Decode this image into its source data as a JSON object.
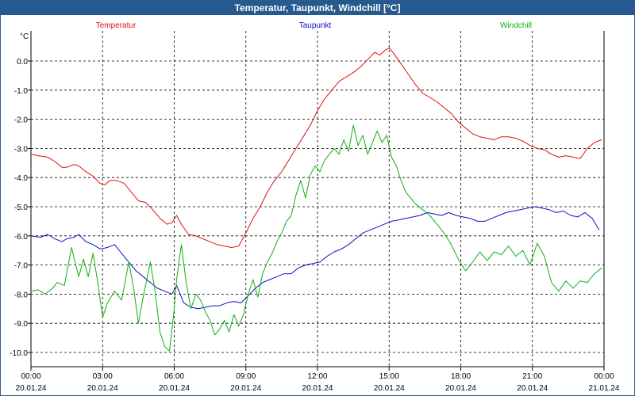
{
  "window": {
    "title": "Temperatur, Taupunkt, Windchill [°C]"
  },
  "chart_data": {
    "type": "line",
    "title": "Temperatur, Taupunkt, Windchill [°C]",
    "ylabel": "°C",
    "ylim": [
      -10.5,
      1.0
    ],
    "xlim": [
      0,
      24
    ],
    "grid": true,
    "yticks": [
      {
        "v": 0.0,
        "label": "0.0"
      },
      {
        "v": -1.0,
        "label": "-1.0"
      },
      {
        "v": -2.0,
        "label": "-2.0"
      },
      {
        "v": -3.0,
        "label": "-3.0"
      },
      {
        "v": -4.0,
        "label": "-4.0"
      },
      {
        "v": -5.0,
        "label": "-5.0"
      },
      {
        "v": -6.0,
        "label": "-6.0"
      },
      {
        "v": -7.0,
        "label": "-7.0"
      },
      {
        "v": -8.0,
        "label": "-8.0"
      },
      {
        "v": -9.0,
        "label": "-9.0"
      },
      {
        "v": -10.0,
        "label": "-10.0"
      }
    ],
    "xticks": [
      {
        "h": 0,
        "time": "00:00",
        "date": "20.01.24"
      },
      {
        "h": 3,
        "time": "03:00",
        "date": "20.01.24"
      },
      {
        "h": 6,
        "time": "06:00",
        "date": "20.01.24"
      },
      {
        "h": 9,
        "time": "09:00",
        "date": "20.01.24"
      },
      {
        "h": 12,
        "time": "12:00",
        "date": "20.01.24"
      },
      {
        "h": 15,
        "time": "15:00",
        "date": "20.01.24"
      },
      {
        "h": 18,
        "time": "18:00",
        "date": "20.01.24"
      },
      {
        "h": 21,
        "time": "21:00",
        "date": "20.01.24"
      },
      {
        "h": 24,
        "time": "00:00",
        "date": "21.01.24"
      }
    ],
    "series": [
      {
        "name": "Temperatur",
        "color": "#e01010",
        "x": [
          0,
          0.3,
          0.7,
          1,
          1.3,
          1.5,
          1.8,
          2,
          2.3,
          2.6,
          2.9,
          3.1,
          3.3,
          3.6,
          3.9,
          4.2,
          4.5,
          4.8,
          5.1,
          5.4,
          5.7,
          5.9,
          6.1,
          6.3,
          6.6,
          6.9,
          7.2,
          7.5,
          7.8,
          8.1,
          8.4,
          8.7,
          9,
          9.3,
          9.6,
          9.9,
          10.2,
          10.5,
          10.8,
          11.1,
          11.4,
          11.7,
          12,
          12.3,
          12.6,
          12.9,
          13.2,
          13.5,
          13.8,
          14.1,
          14.4,
          14.6,
          14.8,
          15,
          15.2,
          15.5,
          15.8,
          16.1,
          16.4,
          16.7,
          17,
          17.3,
          17.6,
          17.9,
          18.2,
          18.5,
          18.8,
          19.1,
          19.4,
          19.7,
          20,
          20.3,
          20.6,
          20.9,
          21.2,
          21.5,
          21.8,
          22.1,
          22.4,
          22.7,
          23,
          23.3,
          23.6,
          23.9
        ],
        "y": [
          -3.2,
          -3.25,
          -3.3,
          -3.45,
          -3.65,
          -3.65,
          -3.55,
          -3.6,
          -3.8,
          -3.95,
          -4.2,
          -4.25,
          -4.1,
          -4.1,
          -4.2,
          -4.5,
          -4.8,
          -4.85,
          -5.1,
          -5.4,
          -5.6,
          -5.55,
          -5.3,
          -5.6,
          -5.95,
          -6.0,
          -6.1,
          -6.2,
          -6.3,
          -6.35,
          -6.4,
          -6.35,
          -5.9,
          -5.4,
          -5.0,
          -4.5,
          -4.1,
          -3.8,
          -3.4,
          -3.0,
          -2.6,
          -2.2,
          -1.7,
          -1.3,
          -1.0,
          -0.7,
          -0.55,
          -0.4,
          -0.2,
          0.05,
          0.3,
          0.2,
          0.35,
          0.45,
          0.25,
          -0.1,
          -0.45,
          -0.8,
          -1.1,
          -1.25,
          -1.4,
          -1.6,
          -1.8,
          -2.1,
          -2.3,
          -2.5,
          -2.6,
          -2.65,
          -2.7,
          -2.6,
          -2.6,
          -2.65,
          -2.75,
          -2.9,
          -3.0,
          -3.05,
          -3.2,
          -3.3,
          -3.25,
          -3.3,
          -3.35,
          -3.0,
          -2.8,
          -2.7
        ]
      },
      {
        "name": "Taupunkt",
        "color": "#1010c0",
        "x": [
          0,
          0.4,
          0.7,
          1,
          1.3,
          1.5,
          1.8,
          2,
          2.3,
          2.6,
          2.9,
          3.2,
          3.5,
          3.8,
          4.1,
          4.4,
          4.7,
          5,
          5.3,
          5.6,
          5.9,
          6.1,
          6.4,
          6.7,
          7,
          7.3,
          7.6,
          7.9,
          8.2,
          8.5,
          8.8,
          9.1,
          9.4,
          9.7,
          10,
          10.3,
          10.6,
          10.9,
          11.2,
          11.5,
          11.8,
          12.1,
          12.4,
          12.7,
          13,
          13.3,
          13.6,
          13.9,
          14.2,
          14.5,
          14.8,
          15.1,
          15.4,
          15.7,
          16,
          16.3,
          16.6,
          16.9,
          17.2,
          17.5,
          17.8,
          18.1,
          18.4,
          18.7,
          19,
          19.3,
          19.6,
          19.9,
          20.2,
          20.5,
          20.8,
          21.1,
          21.4,
          21.7,
          22,
          22.3,
          22.6,
          22.9,
          23.2,
          23.5,
          23.8
        ],
        "y": [
          -6.0,
          -6.05,
          -5.95,
          -6.1,
          -6.2,
          -6.1,
          -6.05,
          -5.95,
          -6.2,
          -6.3,
          -6.45,
          -6.4,
          -6.3,
          -6.6,
          -6.9,
          -7.2,
          -7.4,
          -7.6,
          -7.8,
          -7.9,
          -8.0,
          -7.7,
          -8.3,
          -8.45,
          -8.5,
          -8.45,
          -8.4,
          -8.4,
          -8.3,
          -8.25,
          -8.3,
          -8.05,
          -7.8,
          -7.6,
          -7.5,
          -7.4,
          -7.3,
          -7.3,
          -7.1,
          -7.0,
          -6.95,
          -6.9,
          -6.7,
          -6.55,
          -6.45,
          -6.3,
          -6.1,
          -5.9,
          -5.8,
          -5.7,
          -5.6,
          -5.5,
          -5.45,
          -5.4,
          -5.35,
          -5.3,
          -5.2,
          -5.25,
          -5.3,
          -5.2,
          -5.3,
          -5.35,
          -5.4,
          -5.5,
          -5.5,
          -5.4,
          -5.3,
          -5.2,
          -5.15,
          -5.1,
          -5.05,
          -5.0,
          -5.05,
          -5.1,
          -5.2,
          -5.15,
          -5.3,
          -5.35,
          -5.2,
          -5.4,
          -5.8
        ]
      },
      {
        "name": "Windchill",
        "color": "#10b010",
        "x": [
          0,
          0.3,
          0.6,
          0.9,
          1.1,
          1.4,
          1.7,
          2,
          2.2,
          2.4,
          2.6,
          2.8,
          3,
          3.2,
          3.5,
          3.8,
          4.1,
          4.3,
          4.5,
          4.7,
          5,
          5.2,
          5.4,
          5.6,
          5.8,
          6,
          6.1,
          6.3,
          6.5,
          6.7,
          6.9,
          7.1,
          7.3,
          7.5,
          7.7,
          7.9,
          8.1,
          8.3,
          8.5,
          8.7,
          8.9,
          9.1,
          9.3,
          9.5,
          9.7,
          9.9,
          10.1,
          10.3,
          10.5,
          10.7,
          10.9,
          11.1,
          11.3,
          11.5,
          11.7,
          11.9,
          12.1,
          12.3,
          12.5,
          12.7,
          12.9,
          13.1,
          13.3,
          13.5,
          13.7,
          13.9,
          14.1,
          14.3,
          14.5,
          14.7,
          14.9,
          15.1,
          15.3,
          15.5,
          15.7,
          15.9,
          16.1,
          16.4,
          16.7,
          17,
          17.3,
          17.6,
          17.9,
          18.2,
          18.5,
          18.8,
          19.1,
          19.4,
          19.7,
          20,
          20.3,
          20.6,
          20.9,
          21.2,
          21.5,
          21.8,
          22.1,
          22.4,
          22.7,
          23,
          23.3,
          23.6,
          23.9
        ],
        "y": [
          -7.9,
          -7.85,
          -8.0,
          -7.8,
          -7.6,
          -7.7,
          -6.4,
          -7.4,
          -6.8,
          -7.4,
          -6.6,
          -7.6,
          -8.8,
          -8.3,
          -7.9,
          -8.2,
          -6.9,
          -7.8,
          -9.0,
          -8.1,
          -6.9,
          -7.9,
          -9.3,
          -9.8,
          -9.95,
          -8.5,
          -7.5,
          -6.3,
          -7.6,
          -8.5,
          -8.0,
          -8.2,
          -8.6,
          -8.9,
          -9.4,
          -9.2,
          -8.9,
          -9.3,
          -8.7,
          -9.1,
          -8.7,
          -8.0,
          -7.5,
          -8.1,
          -7.3,
          -6.9,
          -6.6,
          -6.2,
          -5.9,
          -5.5,
          -5.3,
          -4.6,
          -4.1,
          -4.7,
          -3.9,
          -3.6,
          -3.8,
          -3.4,
          -3.2,
          -3.0,
          -3.2,
          -2.7,
          -3.1,
          -2.2,
          -2.9,
          -2.55,
          -3.2,
          -2.8,
          -2.4,
          -2.8,
          -2.55,
          -3.3,
          -3.6,
          -4.1,
          -4.5,
          -4.7,
          -4.9,
          -5.1,
          -5.3,
          -5.6,
          -5.9,
          -6.3,
          -6.8,
          -7.2,
          -6.9,
          -6.55,
          -6.85,
          -6.55,
          -6.65,
          -6.35,
          -6.7,
          -6.5,
          -7.0,
          -6.25,
          -6.7,
          -7.6,
          -7.9,
          -7.55,
          -7.8,
          -7.55,
          -7.6,
          -7.3,
          -7.1
        ]
      }
    ]
  }
}
